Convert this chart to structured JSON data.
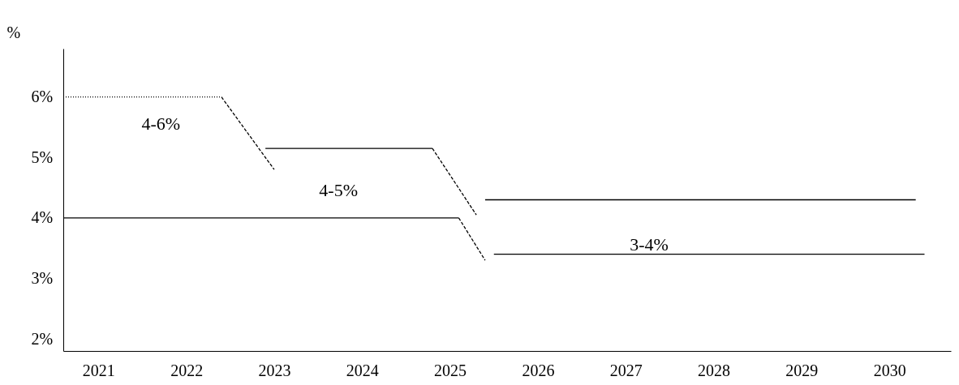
{
  "chart_data": {
    "type": "line",
    "ylabel": "%",
    "series": [
      {
        "color": "#000000",
        "line_style": "dotted",
        "x": [
          2020.6,
          2022.4
        ],
        "values": [
          6,
          6
        ]
      },
      {
        "color": "#000000",
        "line_style": "dashed",
        "x": [
          2022.4,
          2023.0
        ],
        "values": [
          6,
          4.8
        ]
      },
      {
        "color": "#000000",
        "line_style": "solid",
        "x": [
          2022.9,
          2024.8
        ],
        "values": [
          5.15,
          5.15
        ]
      },
      {
        "color": "#000000",
        "line_style": "dashed",
        "x": [
          2024.8,
          2025.3
        ],
        "values": [
          5.15,
          4.05
        ]
      },
      {
        "color": "#000000",
        "line_style": "solid",
        "x": [
          2020.6,
          2025.1
        ],
        "values": [
          4,
          4
        ]
      },
      {
        "color": "#000000",
        "line_style": "dashed",
        "x": [
          2025.1,
          2025.4
        ],
        "values": [
          4,
          3.3
        ]
      },
      {
        "color": "#000000",
        "line_style": "solid",
        "x": [
          2025.4,
          2030.3
        ],
        "values": [
          4.3,
          4.3
        ]
      },
      {
        "color": "#000000",
        "line_style": "solid",
        "x": [
          2025.5,
          2030.4
        ],
        "values": [
          3.4,
          3.4
        ]
      }
    ],
    "annotations": [
      "4-6%",
      "4-5%",
      "3-4%"
    ],
    "xlim": [
      2020.6,
      2030.7
    ],
    "xticks": [
      2021,
      2022,
      2023,
      2024,
      2025,
      2026,
      2027,
      2028,
      2029,
      2030
    ],
    "ylim": [
      1.8,
      6.8
    ],
    "yticks": [
      {
        "value": 2,
        "label": "2%"
      },
      {
        "value": 3,
        "label": "3%"
      },
      {
        "value": 4,
        "label": "4%"
      },
      {
        "value": 5,
        "label": "5%"
      },
      {
        "value": 6,
        "label": "6%"
      }
    ],
    "grid": false,
    "marker": "none"
  }
}
